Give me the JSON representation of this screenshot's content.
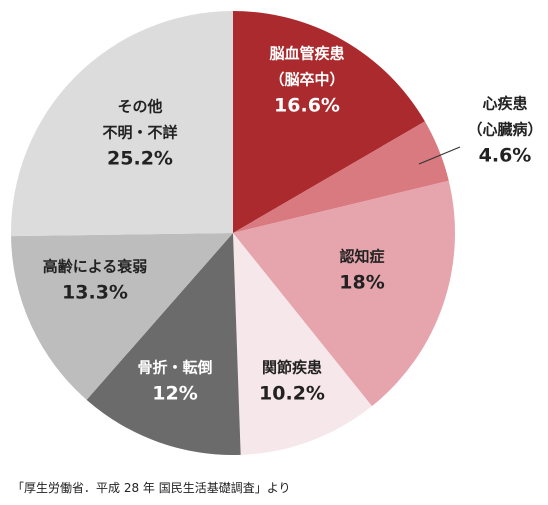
{
  "chart_data": {
    "type": "pie",
    "start": "top",
    "direction": "clockwise",
    "slices": [
      {
        "id": "brain",
        "label": "脳血管疾患",
        "sublabel": "（脳卒中）",
        "value": 16.6,
        "value_label": "16.6%",
        "color": "#ab2a2d",
        "text_color": "#ffffff"
      },
      {
        "id": "heart",
        "label": "心疾患",
        "sublabel": "（心臓病）",
        "value": 4.6,
        "value_label": "4.6%",
        "color": "#d87a80",
        "text_color": "#222222"
      },
      {
        "id": "dementia",
        "label": "認知症",
        "value": 18,
        "value_label": "18%",
        "color": "#e6a5ad",
        "text_color": "#222222"
      },
      {
        "id": "joint",
        "label": "関節疾患",
        "value": 10.2,
        "value_label": "10.2%",
        "color": "#f6e7ea",
        "text_color": "#222222"
      },
      {
        "id": "fracture",
        "label": "骨折・転倒",
        "value": 12,
        "value_label": "12%",
        "color": "#6b6b6b",
        "text_color": "#ffffff"
      },
      {
        "id": "frailty",
        "label": "高齢による衰弱",
        "value": 13.3,
        "value_label": "13.3%",
        "color": "#bdbdbd",
        "text_color": "#222222"
      },
      {
        "id": "other",
        "label": "その他",
        "sublabel": "不明・不詳",
        "value": 25.2,
        "value_label": "25.2%",
        "color": "#dcdcdc",
        "text_color": "#222222"
      }
    ]
  },
  "source": "「厚生労働省．平成 28 年 国民生活基礎調査」より"
}
